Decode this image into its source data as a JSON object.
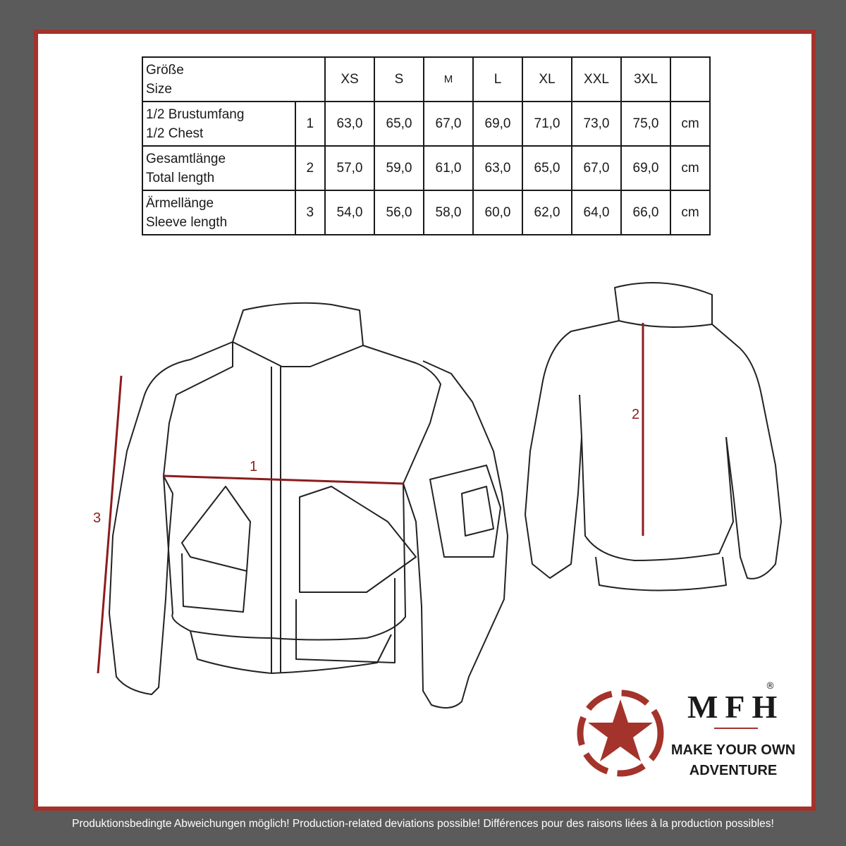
{
  "table": {
    "header": {
      "label_de": "Größe",
      "label_en": "Size",
      "sizes": [
        "XS",
        "S",
        "M",
        "L",
        "XL",
        "XXL",
        "3XL"
      ]
    },
    "rows": [
      {
        "label_de": "1/2 Brustumfang",
        "label_en": "1/2 Chest",
        "index": "1",
        "values": [
          "63,0",
          "65,0",
          "67,0",
          "69,0",
          "71,0",
          "73,0",
          "75,0"
        ],
        "unit": "cm"
      },
      {
        "label_de": "Gesamtlänge",
        "label_en": "Total length",
        "index": "2",
        "values": [
          "57,0",
          "59,0",
          "61,0",
          "63,0",
          "65,0",
          "67,0",
          "69,0"
        ],
        "unit": "cm"
      },
      {
        "label_de": "Ärmellänge",
        "label_en": "Sleeve length",
        "index": "3",
        "values": [
          "54,0",
          "56,0",
          "58,0",
          "60,0",
          "62,0",
          "64,0",
          "66,0"
        ],
        "unit": "cm"
      }
    ]
  },
  "measurements": {
    "chest": "1",
    "length": "2",
    "sleeve": "3"
  },
  "brand": {
    "name": "MFH",
    "registered": "®",
    "slogan_line1": "MAKE YOUR OWN",
    "slogan_line2": "ADVENTURE"
  },
  "footer": "Produktionsbedingte Abweichungen möglich! Production-related deviations possible! Différences pour des raisons liées à la production possibles!",
  "colors": {
    "frame": "#a3332b",
    "background": "#5b5b5b",
    "measure_line": "#8b1d1d"
  }
}
